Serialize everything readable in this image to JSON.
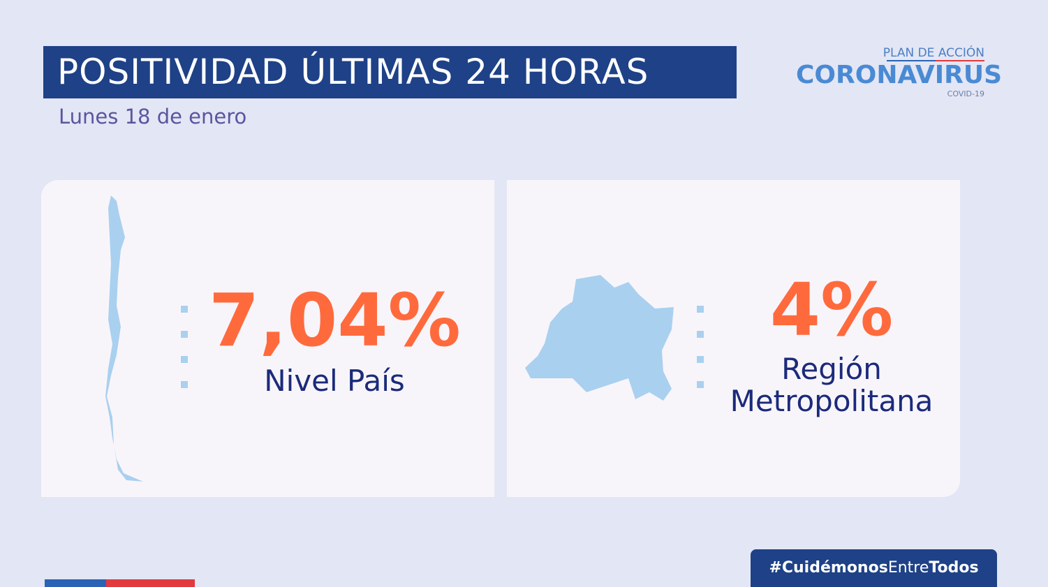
{
  "header": {
    "title": "POSITIVIDAD ÚLTIMAS 24 HORAS",
    "subtitle": "Lunes 18 de enero"
  },
  "logo": {
    "top": "PLAN DE ACCIÓN",
    "main": "CORONAVIRUS",
    "bottom": "COVID-19"
  },
  "cards": [
    {
      "value": "7,04%",
      "label": "Nivel País"
    },
    {
      "value": "4%",
      "label": "Región Metropolitana"
    }
  ],
  "hashtag": {
    "parts": [
      "#Cuidémonos",
      "Entre",
      "Todos"
    ]
  }
}
